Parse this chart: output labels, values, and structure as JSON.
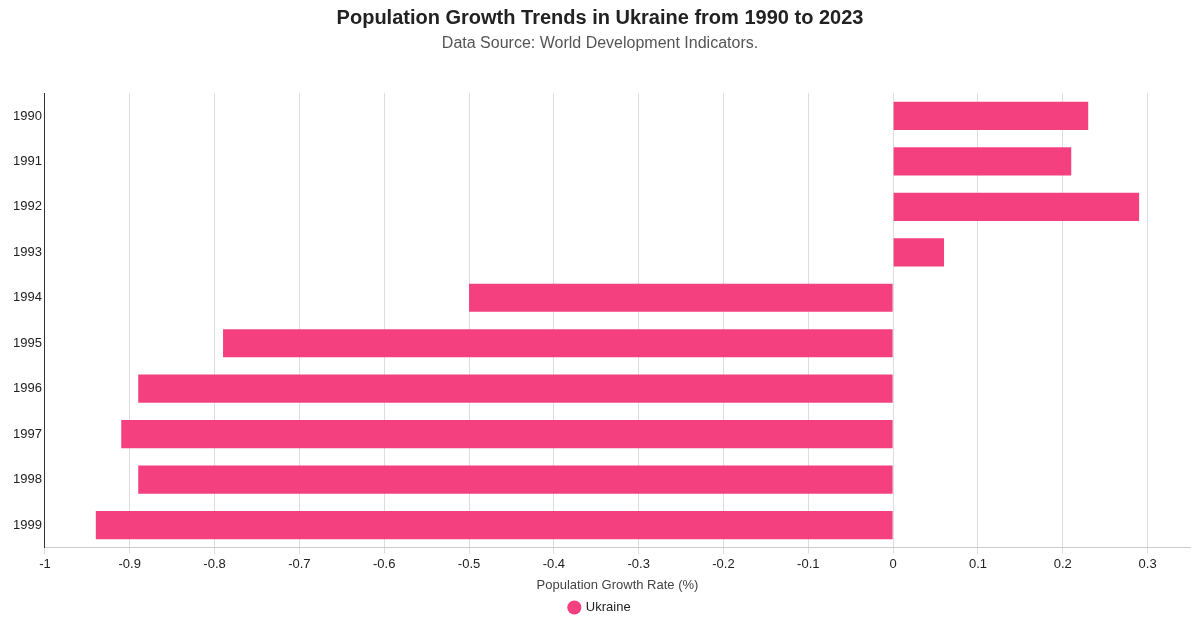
{
  "chart_data": {
    "type": "bar",
    "orientation": "horizontal",
    "title": "Population Growth Trends in Ukraine from 1990 to 2023",
    "subtitle": "Data Source: World Development Indicators.",
    "xlabel": "Population Growth Rate (%)",
    "categories": [
      "1990",
      "1991",
      "1992",
      "1993",
      "1994",
      "1995",
      "1996",
      "1997",
      "1998",
      "1999"
    ],
    "series": [
      {
        "name": "Ukraine",
        "color": "#f4407f",
        "values": [
          0.23,
          0.21,
          0.29,
          0.06,
          -0.5,
          -0.79,
          -0.89,
          -0.91,
          -0.89,
          -0.94
        ]
      }
    ],
    "xlim": [
      -1,
      0.35
    ],
    "xticks": [
      -1,
      -0.9,
      -0.8,
      -0.7,
      -0.6,
      -0.5,
      -0.4,
      -0.3,
      -0.2,
      -0.1,
      0,
      0.1,
      0.2,
      0.3
    ],
    "grid": "x",
    "legend": "bottom"
  }
}
